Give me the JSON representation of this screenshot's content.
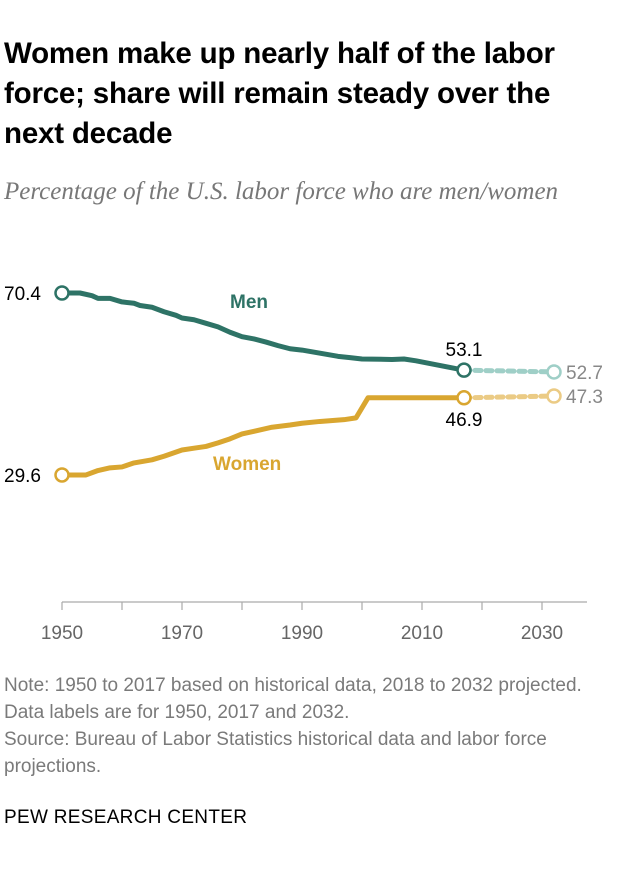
{
  "title": "Women make up nearly half of the labor force; share will remain steady over the next decade",
  "subtitle": "Percentage of the U.S. labor force who are men/women",
  "note": "Note: 1950 to 2017 based on historical data, 2018 to 2032 projected. Data labels are for 1950, 2017 and 2032.",
  "source": "Source: Bureau of Labor Statistics historical data and labor force projections.",
  "brand": "PEW RESEARCH CENTER",
  "chart_data": {
    "type": "line",
    "title": "Percentage of the U.S. labor force who are men/women",
    "xlabel": "",
    "ylabel": "",
    "xlim": [
      1950,
      2037
    ],
    "ylim": [
      0,
      70.4
    ],
    "x_ticks": [
      "1950",
      "1970",
      "1990",
      "2010",
      "2030"
    ],
    "grid": false,
    "series": [
      {
        "name": "Men",
        "color": "#2e7366",
        "projection_color": "#9fcfc7",
        "historical": [
          [
            1950,
            70.4
          ],
          [
            1953,
            70.4
          ],
          [
            1955,
            69.8
          ],
          [
            1956,
            69.2
          ],
          [
            1958,
            69.2
          ],
          [
            1960,
            68.4
          ],
          [
            1962,
            68.1
          ],
          [
            1963,
            67.6
          ],
          [
            1965,
            67.2
          ],
          [
            1967,
            66.2
          ],
          [
            1969,
            65.4
          ],
          [
            1970,
            64.8
          ],
          [
            1972,
            64.4
          ],
          [
            1974,
            63.6
          ],
          [
            1976,
            62.8
          ],
          [
            1978,
            61.6
          ],
          [
            1980,
            60.6
          ],
          [
            1982,
            60.1
          ],
          [
            1984,
            59.4
          ],
          [
            1986,
            58.6
          ],
          [
            1988,
            57.9
          ],
          [
            1990,
            57.6
          ],
          [
            1993,
            56.9
          ],
          [
            1996,
            56.2
          ],
          [
            1998,
            55.9
          ],
          [
            2000,
            55.6
          ],
          [
            2005,
            55.5
          ],
          [
            2007,
            55.6
          ],
          [
            2009,
            55.2
          ],
          [
            2017,
            53.1
          ]
        ],
        "projected": [
          [
            2017,
            53.1
          ],
          [
            2032,
            52.7
          ]
        ],
        "labels": {
          "1950": "70.4",
          "2017": "53.1",
          "2032": "52.7"
        }
      },
      {
        "name": "Women",
        "color": "#d9a630",
        "projection_color": "#ebcb85",
        "historical": [
          [
            1950,
            29.6
          ],
          [
            1954,
            29.6
          ],
          [
            1956,
            30.6
          ],
          [
            1958,
            31.2
          ],
          [
            1960,
            31.4
          ],
          [
            1962,
            32.3
          ],
          [
            1965,
            33.0
          ],
          [
            1967,
            33.8
          ],
          [
            1970,
            35.2
          ],
          [
            1972,
            35.6
          ],
          [
            1974,
            36.0
          ],
          [
            1976,
            36.8
          ],
          [
            1978,
            37.7
          ],
          [
            1980,
            38.8
          ],
          [
            1982,
            39.4
          ],
          [
            1985,
            40.3
          ],
          [
            1988,
            40.8
          ],
          [
            1990,
            41.2
          ],
          [
            1993,
            41.6
          ],
          [
            1997,
            42.0
          ],
          [
            1999,
            42.4
          ],
          [
            2001,
            46.9
          ],
          [
            2017,
            46.9
          ]
        ],
        "projected": [
          [
            2017,
            46.9
          ],
          [
            2032,
            47.3
          ]
        ],
        "labels": {
          "1950": "29.6",
          "2017": "46.9",
          "2032": "47.3"
        }
      }
    ]
  }
}
